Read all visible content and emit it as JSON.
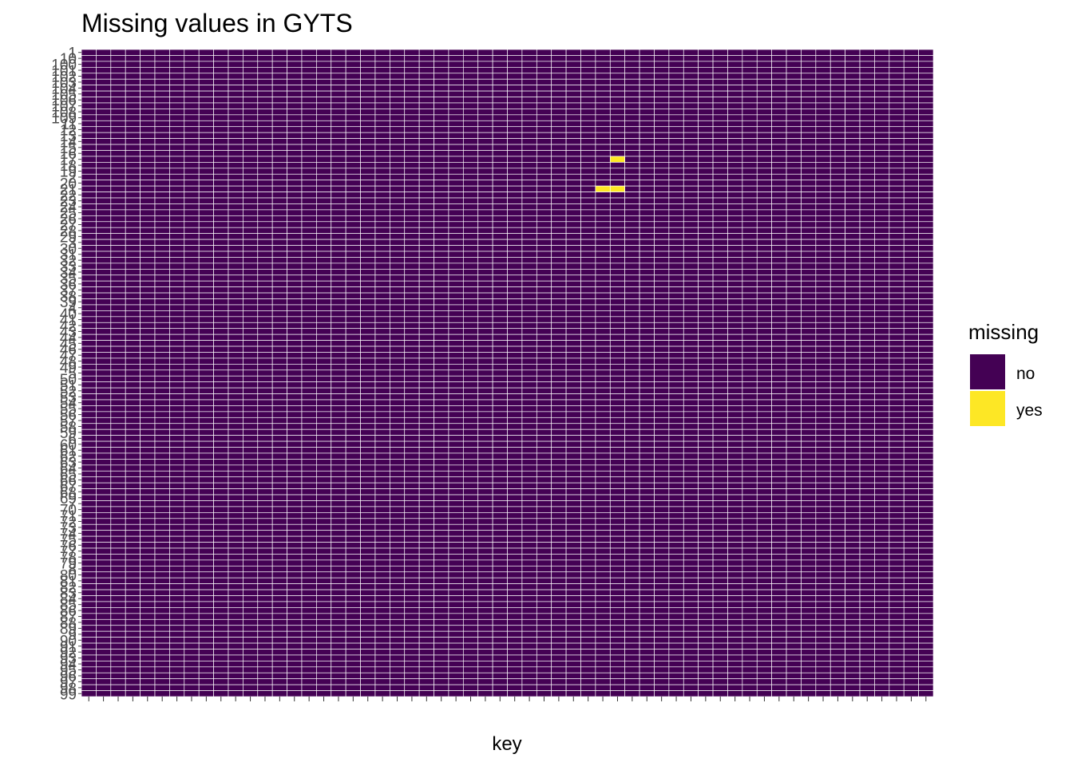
{
  "chart_data": {
    "type": "heatmap",
    "title": "Missing values in GYTS",
    "xlabel": "key",
    "ylabel": "",
    "legend": {
      "title": "missing",
      "placement": "right",
      "entries": [
        {
          "label": "no",
          "color": "#440154"
        },
        {
          "label": "yes",
          "color": "#FDE725"
        }
      ]
    },
    "columns_count": 58,
    "row_labels": [
      "1",
      "10",
      "100",
      "101",
      "102",
      "103",
      "104",
      "105",
      "106",
      "107",
      "108",
      "109",
      "11",
      "12",
      "13",
      "14",
      "15",
      "16",
      "17",
      "18",
      "19",
      "2",
      "20",
      "21",
      "22",
      "23",
      "24",
      "25",
      "26",
      "27",
      "28",
      "29",
      "3",
      "30",
      "31",
      "32",
      "33",
      "34",
      "35",
      "36",
      "37",
      "38",
      "39",
      "4",
      "40",
      "41",
      "42",
      "43",
      "44",
      "45",
      "46",
      "47",
      "48",
      "49",
      "5",
      "50",
      "51",
      "52",
      "53",
      "54",
      "55",
      "56",
      "57",
      "58",
      "59",
      "6",
      "60",
      "61",
      "62",
      "63",
      "64",
      "65",
      "66",
      "67",
      "68",
      "69",
      "7",
      "70",
      "71",
      "72",
      "73",
      "74",
      "75",
      "76",
      "77",
      "78",
      "79",
      "8",
      "80",
      "81",
      "82",
      "83",
      "84",
      "85",
      "86",
      "87",
      "88",
      "89",
      "9",
      "90",
      "91",
      "92",
      "93",
      "94",
      "95",
      "96",
      "97",
      "98",
      "99"
    ],
    "missing_cells": [
      {
        "row": "17",
        "col": 36
      },
      {
        "row": "21",
        "col": 35
      },
      {
        "row": "21",
        "col": 36
      }
    ],
    "grid": false
  }
}
